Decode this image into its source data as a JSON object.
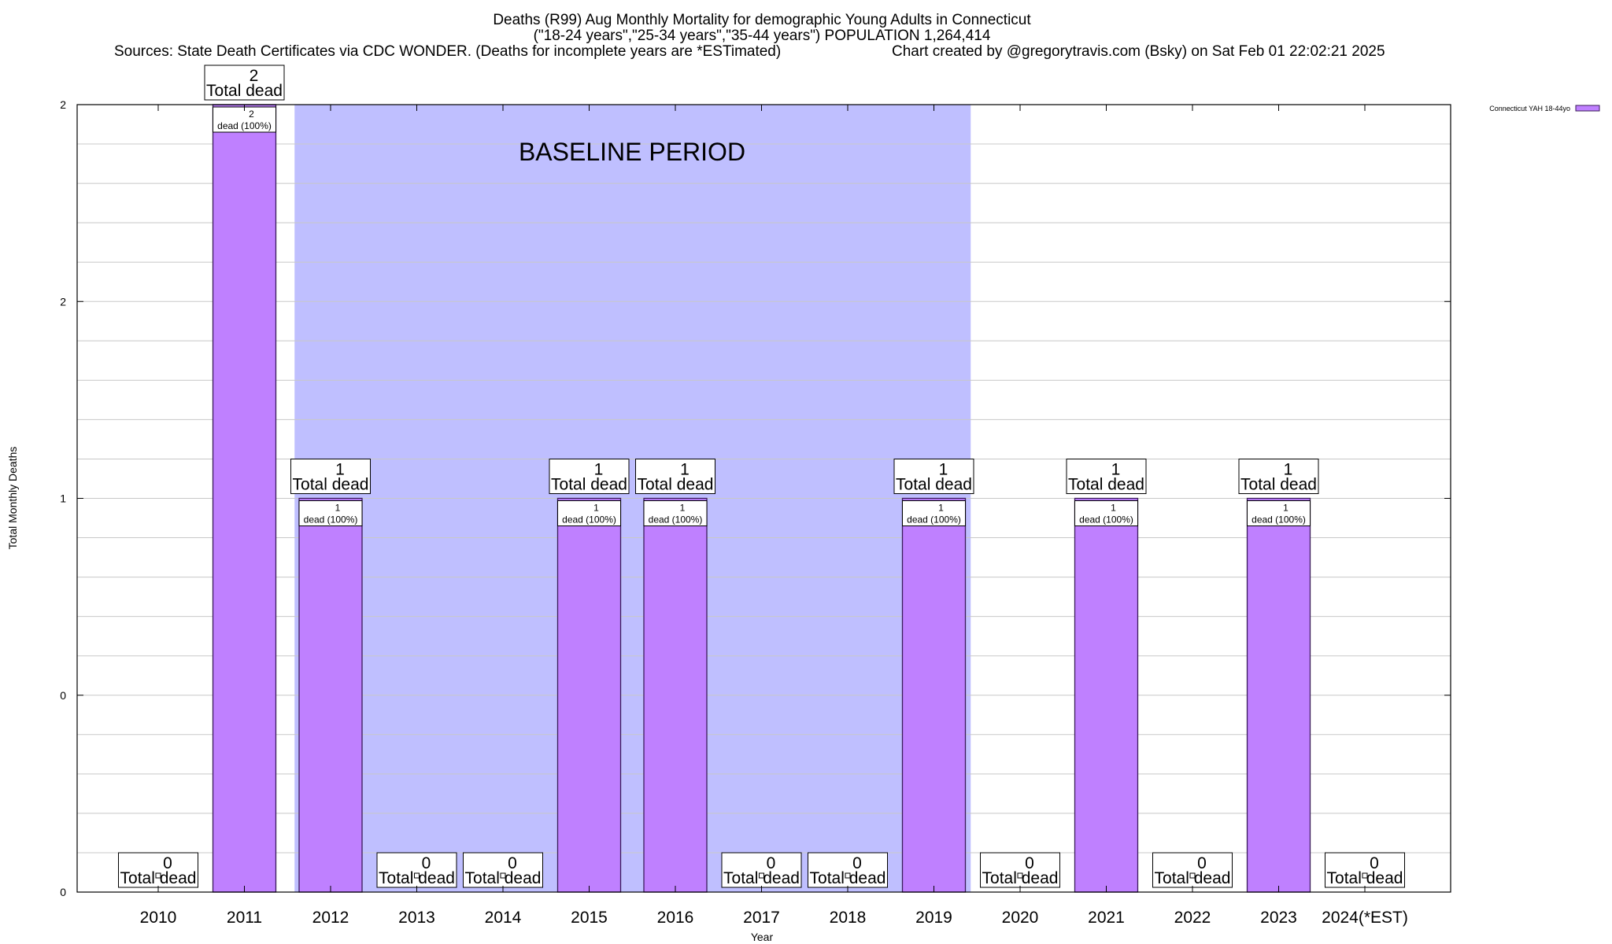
{
  "chart_data": {
    "type": "bar",
    "title_line1": "Deaths (R99) Aug Monthly Mortality for demographic Young Adults in Connecticut",
    "title_line2": "(\"18-24 years\",\"25-34 years\",\"35-44 years\") POPULATION 1,264,414",
    "sources": "Sources: State Death Certificates via CDC WONDER. (Deaths for incomplete years are *ESTimated)",
    "credit": "Chart created by @gregorytravis.com (Bsky) on Sat Feb 01 22:02:21 2025",
    "xlabel": "Year",
    "ylabel": "Total Monthly Deaths",
    "ylim": [
      0,
      2
    ],
    "y_tick_labels": [
      "0",
      "0",
      "1",
      "2",
      "2"
    ],
    "y_tick_values": [
      0,
      0.5,
      1,
      1.5,
      2
    ],
    "categories": [
      "2010",
      "2011",
      "2012",
      "2013",
      "2014",
      "2015",
      "2016",
      "2017",
      "2018",
      "2019",
      "2020",
      "2021",
      "2022",
      "2023",
      "2024(*EST)"
    ],
    "series": [
      {
        "name": "Connecticut YAH 18-44yo",
        "values": [
          0,
          2,
          1,
          0,
          0,
          1,
          1,
          0,
          0,
          1,
          0,
          1,
          0,
          1,
          0
        ]
      }
    ],
    "total_labels": [
      "0",
      "2",
      "1",
      "0",
      "0",
      "1",
      "1",
      "0",
      "0",
      "1",
      "0",
      "1",
      "0",
      "1",
      "0"
    ],
    "total_suffix": "Total dead",
    "bar_labels": [
      "",
      "2",
      "1",
      "",
      "",
      "1",
      "1",
      "",
      "",
      "1",
      "",
      "1",
      "",
      "1",
      ""
    ],
    "bar_suffix": "dead (100%)",
    "baseline_label": "BASELINE PERIOD",
    "baseline_range": [
      "2012",
      "2019"
    ],
    "legend_position": "top-right",
    "colors": {
      "bar": "#bf80ff",
      "bar_edge": "#3a1b5a",
      "baseline": "#bfbfff",
      "grid": "#c8c8c8"
    }
  }
}
